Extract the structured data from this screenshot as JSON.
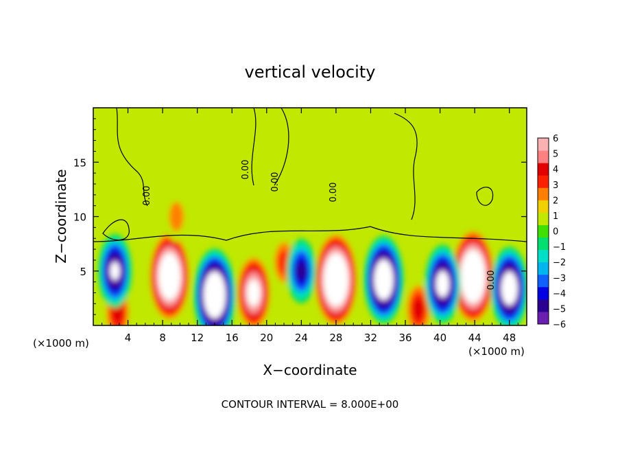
{
  "chart_data": {
    "type": "heatmap",
    "title": "vertical velocity",
    "xlabel": "X−coordinate",
    "ylabel": "Z−coordinate",
    "x_unit_left": "(×1000 m)",
    "x_unit_right": "(×1000 m)",
    "xlim": [
      0,
      50
    ],
    "ylim": [
      0,
      20
    ],
    "x_ticks": [
      4,
      8,
      12,
      16,
      20,
      24,
      28,
      32,
      36,
      40,
      44,
      48
    ],
    "y_ticks": [
      5,
      10,
      15
    ],
    "footer": "CONTOUR INTERVAL = 8.000E+00",
    "colorbar": {
      "ticks": [
        "6",
        "5",
        "4",
        "3",
        "2",
        "1",
        "0",
        "−1",
        "−2",
        "−3",
        "−4",
        "−5",
        "−6"
      ],
      "range": [
        -6,
        6
      ],
      "colors": [
        "#6a1fb0",
        "#2a0090",
        "#0000e0",
        "#1060ff",
        "#00b4f0",
        "#00e0c8",
        "#00e070",
        "#40e000",
        "#c0e800",
        "#f0d000",
        "#ff8000",
        "#ff2000",
        "#e00000",
        "#ff8080",
        "#f8b0b0"
      ]
    },
    "contour_labels": [
      "0.00",
      "0.00",
      "0.00",
      "0.00",
      "0.00"
    ],
    "background_value": 0.5,
    "updraft_cells": [
      {
        "x": 8.8,
        "z": 4.5,
        "w": 11
      },
      {
        "x": 18.5,
        "z": 3.0,
        "w": 8
      },
      {
        "x": 22.0,
        "z": 5.8,
        "w": 3
      },
      {
        "x": 28.0,
        "z": 4.2,
        "w": 12
      },
      {
        "x": 43.8,
        "z": 4.5,
        "w": 12
      },
      {
        "x": 2.8,
        "z": 1.2,
        "w": 4
      },
      {
        "x": 37.5,
        "z": 1.5,
        "w": 4
      },
      {
        "x": 9.6,
        "z": 10.0,
        "w": 2
      }
    ],
    "downdraft_cells": [
      {
        "x": 2.5,
        "z": 5.0,
        "w": -7
      },
      {
        "x": 14.0,
        "z": 2.8,
        "w": -11
      },
      {
        "x": 24.0,
        "z": 5.0,
        "w": -5
      },
      {
        "x": 33.5,
        "z": 4.2,
        "w": -10
      },
      {
        "x": 40.3,
        "z": 3.8,
        "w": -8
      },
      {
        "x": 48.0,
        "z": 3.4,
        "w": -9
      }
    ]
  }
}
